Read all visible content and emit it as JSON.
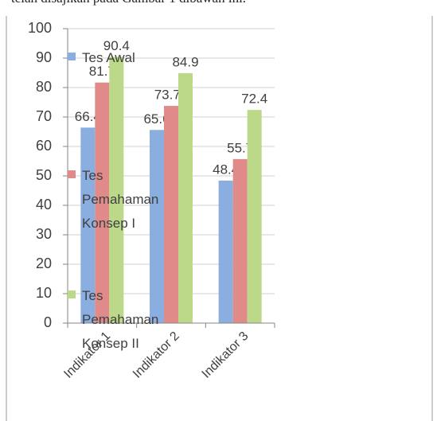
{
  "doc_text": "telah disajikan pada Gambar 1 dibawah ini.",
  "chart_data": {
    "type": "bar",
    "categories": [
      "Indikator 1",
      "Indikator 2",
      "Indikator 3"
    ],
    "series": [
      {
        "name": "Tes Awal",
        "color": "#8aaee0",
        "values": [
          66.4,
          65.6,
          48.4
        ]
      },
      {
        "name": "Tes Pemahaman Konsep I",
        "color": "#e08b89",
        "values": [
          81.7,
          73.77,
          55.7
        ]
      },
      {
        "name": "Tes Pemahaman Konsep II",
        "color": "#bcd98a",
        "values": [
          90.4,
          84.9,
          72.4
        ]
      }
    ],
    "ylim": [
      0,
      100
    ],
    "yticks": [
      0,
      10,
      20,
      30,
      40,
      50,
      60,
      70,
      80,
      90,
      100
    ],
    "grid": true,
    "legend": "left"
  }
}
